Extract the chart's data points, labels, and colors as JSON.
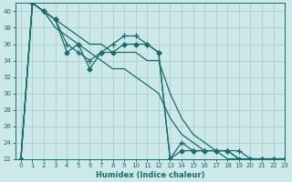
{
  "xlabel": "Humidex (Indice chaleur)",
  "bg_color": "#cce8e8",
  "grid_color": "#aad0d0",
  "line_color": "#1a6b6b",
  "xlim": [
    -0.5,
    23
  ],
  "ylim": [
    22,
    41
  ],
  "yticks": [
    22,
    24,
    26,
    28,
    30,
    32,
    34,
    36,
    38,
    40
  ],
  "xticks": [
    0,
    1,
    2,
    3,
    4,
    5,
    6,
    7,
    8,
    9,
    10,
    11,
    12,
    13,
    14,
    15,
    16,
    17,
    18,
    19,
    20,
    21,
    22,
    23
  ],
  "series": [
    {
      "x": [
        0,
        1,
        2,
        3,
        4,
        5,
        6,
        7,
        8,
        9,
        10,
        11,
        12,
        13,
        14,
        15,
        16,
        17,
        18,
        19,
        20,
        21,
        22,
        23
      ],
      "y": [
        22,
        41,
        40,
        39,
        35,
        36,
        33,
        35,
        35,
        36,
        36,
        36,
        35,
        22,
        23,
        23,
        23,
        23,
        23,
        22,
        22,
        22,
        22,
        22
      ],
      "marker": "D",
      "markersize": 2.5,
      "linewidth": 0.9
    },
    {
      "x": [
        0,
        1,
        2,
        3,
        4,
        5,
        6,
        7,
        8,
        9,
        10,
        11,
        12,
        13,
        14,
        15,
        16,
        17,
        18,
        19,
        20,
        21,
        22,
        23
      ],
      "y": [
        22,
        41,
        40,
        39,
        36,
        35,
        34,
        35,
        36,
        37,
        37,
        36,
        35,
        22,
        24,
        23,
        23,
        23,
        23,
        23,
        22,
        22,
        22,
        22
      ],
      "marker": "+",
      "markersize": 4,
      "linewidth": 0.9
    },
    {
      "x": [
        0,
        1,
        2,
        3,
        4,
        5,
        6,
        7,
        8,
        9,
        10,
        11,
        12,
        13,
        14,
        15,
        16,
        17,
        18,
        19,
        20,
        21,
        22,
        23
      ],
      "y": [
        22,
        41,
        40,
        39,
        38,
        37,
        36,
        36,
        35,
        35,
        35,
        34,
        34,
        30,
        27,
        25,
        24,
        23,
        23,
        22,
        22,
        22,
        22,
        22
      ],
      "marker": null,
      "markersize": 0,
      "linewidth": 0.9
    },
    {
      "x": [
        0,
        1,
        2,
        3,
        4,
        5,
        6,
        7,
        8,
        9,
        10,
        11,
        12,
        13,
        14,
        15,
        16,
        17,
        18,
        19,
        20,
        21,
        22,
        23
      ],
      "y": [
        22,
        41,
        40,
        38,
        37,
        36,
        35,
        34,
        33,
        33,
        32,
        31,
        30,
        27,
        25,
        24,
        23,
        23,
        22,
        22,
        22,
        22,
        22,
        21
      ],
      "marker": null,
      "markersize": 0,
      "linewidth": 0.9
    }
  ]
}
